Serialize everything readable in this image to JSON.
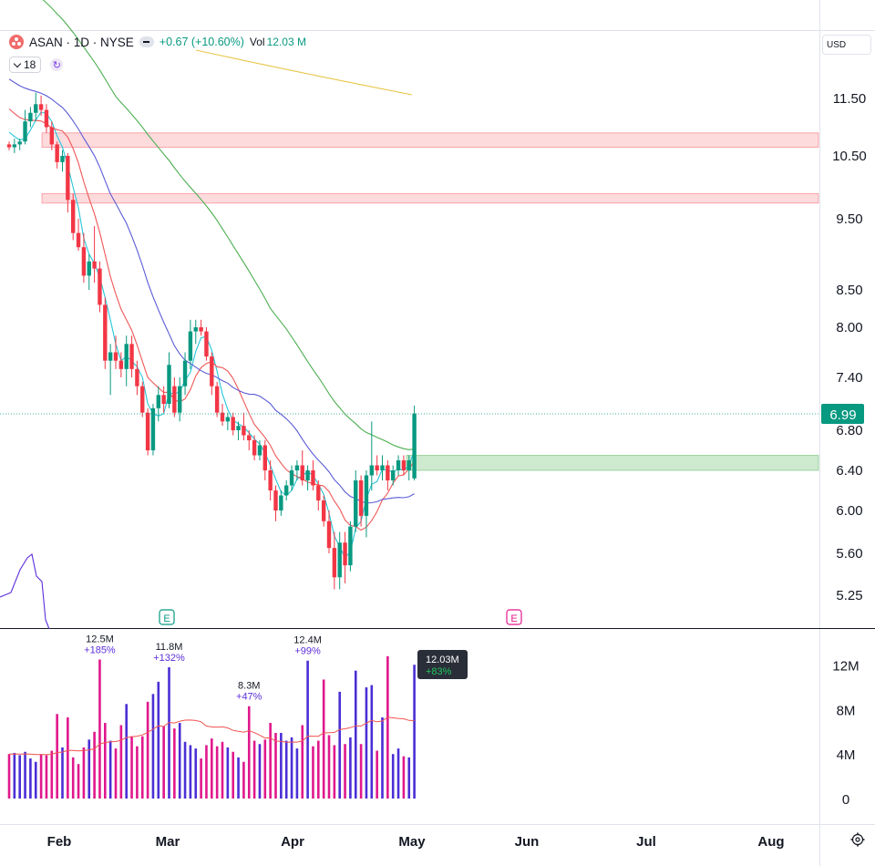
{
  "header": {
    "symbol_line": "ASAN · 1D · NYSE",
    "change": "+0.67 (+10.60%)",
    "vol_label": "Vol",
    "vol_value": "12.03 M",
    "indicator_value": "18"
  },
  "currency": "USD",
  "icons": {
    "logo": "asana-logo",
    "dropdown": "chevron-down-icon",
    "refresh": "refresh-icon",
    "settings": "gear-icon",
    "dash": "minus-icon"
  },
  "colors": {
    "up": "#089981",
    "down": "#f23645",
    "ma_fast": "#26c6da",
    "ma_mid": "#f05656",
    "ma_slow": "#5b5bd6",
    "ma_long": "#4caf50",
    "ma_200": "#e8c547",
    "vol_up": "#4a2fd6",
    "vol_down": "#e0188c",
    "vol_ma": "#ef5350"
  },
  "price_label": "6.99",
  "vol_label_box": {
    "value": "12.03M",
    "change": "+83%"
  },
  "chart_data": {
    "type": "candlestick",
    "price_axis_ticks": [
      "11.50",
      "10.50",
      "9.50",
      "8.50",
      "8.00",
      "7.40",
      "6.80",
      "6.40",
      "6.00",
      "5.60",
      "5.25"
    ],
    "volume_axis_ticks": [
      "12M",
      "8M",
      "4M",
      "0"
    ],
    "x_ticks": [
      "Feb",
      "Mar",
      "Apr",
      "May",
      "Jun",
      "Jul",
      "Aug"
    ],
    "zones": [
      {
        "kind": "resistance",
        "low": 10.65,
        "high": 10.9
      },
      {
        "kind": "resistance",
        "low": 9.75,
        "high": 9.9
      },
      {
        "kind": "support",
        "low": 6.4,
        "high": 6.55
      }
    ],
    "events": [
      {
        "label": "E",
        "date": "Feb 27"
      },
      {
        "label": "E",
        "date": "May 1"
      }
    ],
    "candles": [
      [
        10.7,
        10.75,
        10.6,
        10.65
      ],
      [
        10.65,
        10.8,
        10.55,
        10.7
      ],
      [
        10.7,
        10.8,
        10.6,
        10.75
      ],
      [
        10.75,
        11.3,
        10.7,
        11.1
      ],
      [
        11.1,
        11.35,
        11.0,
        11.25
      ],
      [
        11.25,
        11.6,
        11.1,
        11.4
      ],
      [
        11.4,
        11.55,
        11.2,
        11.3
      ],
      [
        11.3,
        11.4,
        10.9,
        11.0
      ],
      [
        11.0,
        11.1,
        10.6,
        10.7
      ],
      [
        10.7,
        10.75,
        10.3,
        10.4
      ],
      [
        10.4,
        10.6,
        10.25,
        10.5
      ],
      [
        10.5,
        10.55,
        9.6,
        9.8
      ],
      [
        9.8,
        9.9,
        9.2,
        9.3
      ],
      [
        9.3,
        9.5,
        9.05,
        9.1
      ],
      [
        9.1,
        9.3,
        8.6,
        8.7
      ],
      [
        8.7,
        9.0,
        8.5,
        8.9
      ],
      [
        8.9,
        9.4,
        8.6,
        8.8
      ],
      [
        8.8,
        8.9,
        8.2,
        8.3
      ],
      [
        8.3,
        8.4,
        7.5,
        7.6
      ],
      [
        7.6,
        7.8,
        7.2,
        7.7
      ],
      [
        7.7,
        7.9,
        7.5,
        7.6
      ],
      [
        7.6,
        7.7,
        7.4,
        7.5
      ],
      [
        7.5,
        7.9,
        7.3,
        7.8
      ],
      [
        7.8,
        7.9,
        7.4,
        7.5
      ],
      [
        7.5,
        7.6,
        7.2,
        7.3
      ],
      [
        7.3,
        7.35,
        6.95,
        7.0
      ],
      [
        7.0,
        7.05,
        6.55,
        6.6
      ],
      [
        6.6,
        7.1,
        6.55,
        7.05
      ],
      [
        7.05,
        7.3,
        6.9,
        7.2
      ],
      [
        7.2,
        7.3,
        7.0,
        7.1
      ],
      [
        7.1,
        7.7,
        7.05,
        7.55
      ],
      [
        7.3,
        7.4,
        6.95,
        7.0
      ],
      [
        7.0,
        7.4,
        6.9,
        7.3
      ],
      [
        7.3,
        7.7,
        7.2,
        7.6
      ],
      [
        7.6,
        8.1,
        7.5,
        7.95
      ],
      [
        7.95,
        8.1,
        7.8,
        8.0
      ],
      [
        8.0,
        8.1,
        7.9,
        7.95
      ],
      [
        7.95,
        8.0,
        7.6,
        7.65
      ],
      [
        7.65,
        7.7,
        7.2,
        7.3
      ],
      [
        7.3,
        7.35,
        6.95,
        7.0
      ],
      [
        7.0,
        7.1,
        6.85,
        6.9
      ],
      [
        6.9,
        7.0,
        6.8,
        6.95
      ],
      [
        6.95,
        7.0,
        6.75,
        6.8
      ],
      [
        6.8,
        6.9,
        6.7,
        6.85
      ],
      [
        6.85,
        7.0,
        6.7,
        6.75
      ],
      [
        6.75,
        6.8,
        6.6,
        6.7
      ],
      [
        6.7,
        6.75,
        6.5,
        6.55
      ],
      [
        6.55,
        6.7,
        6.5,
        6.65
      ],
      [
        6.65,
        6.7,
        6.3,
        6.4
      ],
      [
        6.4,
        6.5,
        6.1,
        6.2
      ],
      [
        6.2,
        6.25,
        5.9,
        6.0
      ],
      [
        6.0,
        6.2,
        5.95,
        6.15
      ],
      [
        6.15,
        6.3,
        6.1,
        6.25
      ],
      [
        6.25,
        6.45,
        6.2,
        6.4
      ],
      [
        6.4,
        6.5,
        6.3,
        6.45
      ],
      [
        6.45,
        6.6,
        6.25,
        6.3
      ],
      [
        6.3,
        6.45,
        6.2,
        6.4
      ],
      [
        6.4,
        6.5,
        6.2,
        6.25
      ],
      [
        6.25,
        6.3,
        6.0,
        6.1
      ],
      [
        6.1,
        6.15,
        5.85,
        5.9
      ],
      [
        5.9,
        6.0,
        5.6,
        5.65
      ],
      [
        5.65,
        5.8,
        5.3,
        5.4
      ],
      [
        5.4,
        5.8,
        5.3,
        5.7
      ],
      [
        5.7,
        5.8,
        5.35,
        5.5
      ],
      [
        5.5,
        5.9,
        5.45,
        5.85
      ],
      [
        5.85,
        6.4,
        5.8,
        6.3
      ],
      [
        6.3,
        6.35,
        5.85,
        5.95
      ],
      [
        5.95,
        6.4,
        5.75,
        6.35
      ],
      [
        6.35,
        6.9,
        6.2,
        6.45
      ],
      [
        6.45,
        6.55,
        6.35,
        6.4
      ],
      [
        6.4,
        6.55,
        6.3,
        6.45
      ],
      [
        6.45,
        6.5,
        6.2,
        6.3
      ],
      [
        6.3,
        6.45,
        6.25,
        6.4
      ],
      [
        6.4,
        6.55,
        6.35,
        6.5
      ],
      [
        6.5,
        6.55,
        6.35,
        6.4
      ],
      [
        6.4,
        6.55,
        6.3,
        6.5
      ],
      [
        6.32,
        7.08,
        6.3,
        6.99
      ]
    ],
    "volume_values": [
      4.0,
      4.1,
      3.9,
      4.2,
      3.6,
      3.3,
      4.0,
      3.9,
      4.3,
      7.6,
      4.6,
      7.3,
      3.7,
      3.1,
      4.6,
      5.3,
      6.0,
      12.5,
      6.8,
      5.2,
      4.5,
      6.6,
      8.5,
      5.6,
      4.7,
      5.6,
      8.7,
      9.4,
      10.5,
      6.5,
      11.8,
      6.3,
      6.8,
      5.1,
      4.8,
      4.5,
      3.6,
      4.8,
      5.4,
      4.7,
      5.1,
      4.6,
      4.2,
      3.7,
      3.3,
      8.3,
      5.2,
      4.9,
      5.3,
      6.8,
      5.9,
      5.9,
      5.2,
      5.5,
      4.5,
      6.6,
      12.4,
      4.7,
      5.2,
      10.7,
      5.7,
      4.8,
      9.6,
      4.9,
      5.5,
      11.5,
      4.9,
      10.0,
      10.2,
      4.3,
      7.3,
      12.8,
      4.0,
      4.5,
      3.8,
      3.7,
      12.03
    ],
    "volume_annotations": [
      {
        "value": "12.5M",
        "change": "+185%",
        "index": 17
      },
      {
        "value": "11.8M",
        "change": "+132%",
        "index": 30
      },
      {
        "value": "8.3M",
        "change": "+47%",
        "index": 45
      },
      {
        "value": "12.4M",
        "change": "+99%",
        "index": 56
      }
    ],
    "ma_200_start": 11.45,
    "ma_200_end": 11.18
  }
}
